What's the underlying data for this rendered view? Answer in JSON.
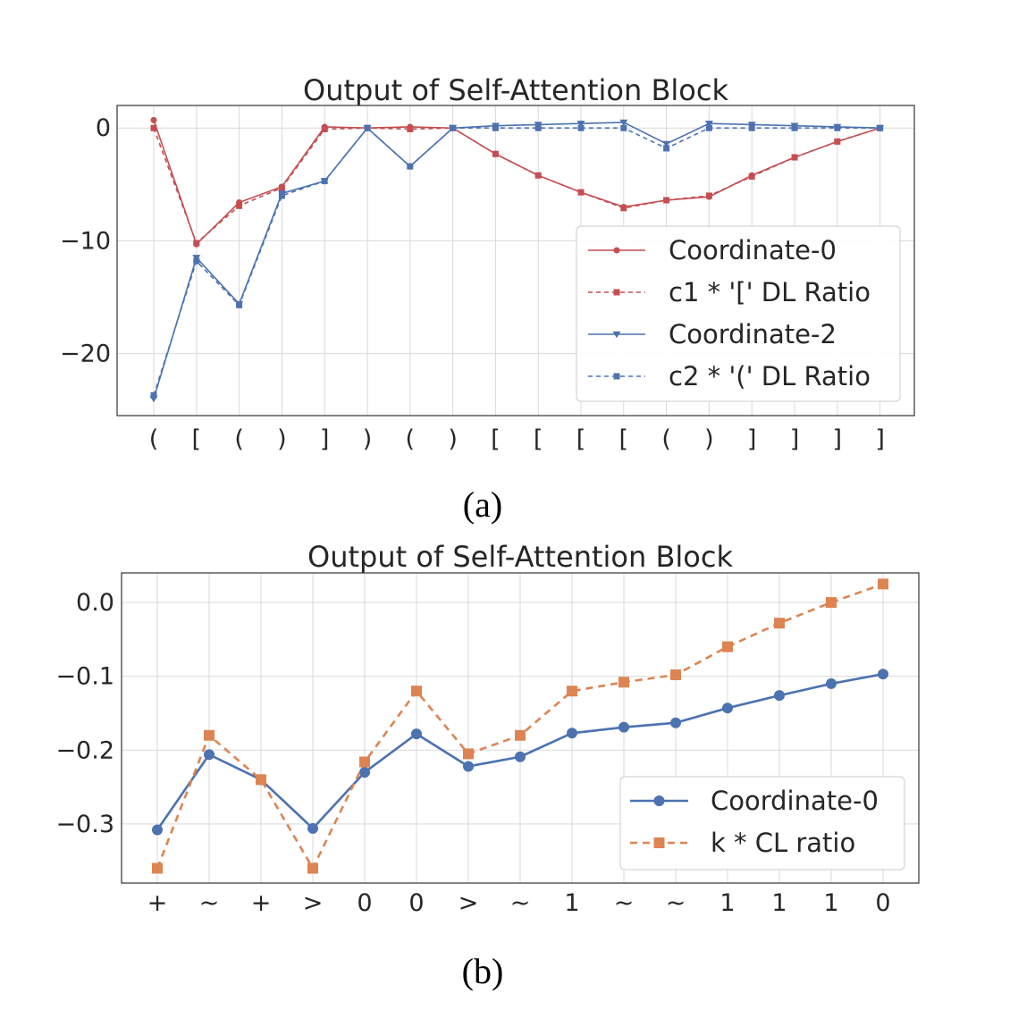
{
  "chart_data": [
    {
      "type": "line",
      "title": "Output of Self-Attention Block",
      "caption": "(a)",
      "categories": [
        "(",
        "[",
        "(",
        ")",
        "]",
        ")",
        "(",
        ")",
        "[",
        "[",
        "[",
        "[",
        "(",
        ")",
        "]",
        "]",
        "]",
        "]"
      ],
      "ylim": [
        -25.5,
        2
      ],
      "yticks": [
        0,
        -10,
        -20
      ],
      "ytick_labels": [
        "0",
        "−10",
        "−20"
      ],
      "grid": true,
      "legend_position": "lower-right",
      "series": [
        {
          "name": "Coordinate-0",
          "color": "#c44e52",
          "style": "solid",
          "marker": "circle",
          "values": [
            0.7,
            -10.3,
            -6.6,
            -5.2,
            0.1,
            0.0,
            0.1,
            0.0,
            -2.3,
            -4.2,
            -5.7,
            -7.0,
            -6.4,
            -6.1,
            -4.2,
            -2.6,
            -1.2,
            0.0
          ]
        },
        {
          "name": "c1 * '[' DL Ratio",
          "color": "#c44e52",
          "style": "dashed",
          "marker": "square",
          "values": [
            0.0,
            -10.2,
            -6.9,
            -5.3,
            -0.1,
            0.0,
            -0.1,
            0.0,
            -2.3,
            -4.2,
            -5.7,
            -7.1,
            -6.4,
            -6.0,
            -4.3,
            -2.6,
            -1.2,
            0.0
          ]
        },
        {
          "name": "Coordinate-2",
          "color": "#4c72b0",
          "style": "solid",
          "marker": "triangle-down",
          "values": [
            -24.0,
            -11.5,
            -15.6,
            -5.8,
            -4.7,
            0.0,
            -3.4,
            0.0,
            0.2,
            0.3,
            0.4,
            0.5,
            -1.4,
            0.4,
            0.3,
            0.2,
            0.1,
            0.0
          ]
        },
        {
          "name": "c2 * '(' DL Ratio",
          "color": "#4c72b0",
          "style": "dashed",
          "marker": "square",
          "values": [
            -23.7,
            -11.8,
            -15.7,
            -6.0,
            -4.7,
            0.0,
            -3.4,
            0.0,
            0.0,
            0.0,
            0.0,
            0.0,
            -1.8,
            0.0,
            0.0,
            0.0,
            0.0,
            0.0
          ]
        }
      ]
    },
    {
      "type": "line",
      "title": "Output of Self-Attention Block",
      "caption": "(b)",
      "categories": [
        "+",
        "~",
        "+",
        ">",
        "0",
        "0",
        ">",
        "~",
        "1",
        "~",
        "~",
        "1",
        "1",
        "1",
        "0"
      ],
      "ylim": [
        -0.38,
        0.04
      ],
      "yticks": [
        0.0,
        -0.1,
        -0.2,
        -0.3
      ],
      "ytick_labels": [
        "0.0",
        "−0.1",
        "−0.2",
        "−0.3"
      ],
      "grid": true,
      "legend_position": "lower-right",
      "series": [
        {
          "name": "Coordinate-0",
          "color": "#4c72b0",
          "style": "solid",
          "marker": "circle",
          "values": [
            -0.308,
            -0.206,
            -0.24,
            -0.306,
            -0.23,
            -0.178,
            -0.222,
            -0.209,
            -0.177,
            -0.169,
            -0.163,
            -0.143,
            -0.126,
            -0.11,
            -0.097
          ]
        },
        {
          "name": "k * CL ratio",
          "color": "#dd8452",
          "style": "dashed",
          "marker": "square",
          "values": [
            -0.36,
            -0.18,
            -0.24,
            -0.36,
            -0.216,
            -0.12,
            -0.205,
            -0.18,
            -0.12,
            -0.108,
            -0.098,
            -0.06,
            -0.028,
            0.0,
            0.025
          ]
        }
      ]
    }
  ]
}
